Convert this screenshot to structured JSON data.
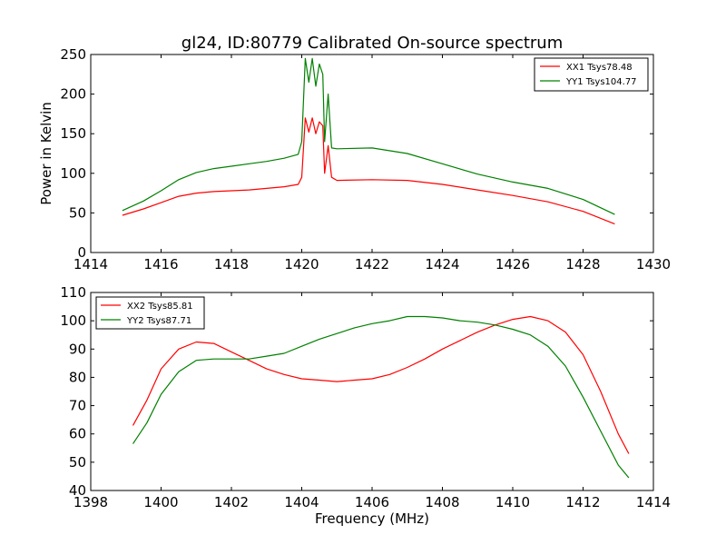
{
  "figure": {
    "title": "gl24, ID:80779 Calibrated On-source spectrum",
    "xlabel": "Frequency (MHz)",
    "ylabel": "Power in Kelvin"
  },
  "chart_data": [
    {
      "type": "line",
      "title": "gl24, ID:80779 Calibrated On-source spectrum",
      "xlabel": "",
      "ylabel": "Power in Kelvin",
      "xlim": [
        1414,
        1430
      ],
      "ylim": [
        0,
        250
      ],
      "xticks": [
        1414,
        1416,
        1418,
        1420,
        1422,
        1424,
        1426,
        1428,
        1430
      ],
      "yticks": [
        0,
        50,
        100,
        150,
        200,
        250
      ],
      "grid": false,
      "legend": "top-right",
      "series": [
        {
          "name": "XX1 Tsys78.48",
          "color": "#ff0000",
          "points": [
            [
              1414.9,
              47
            ],
            [
              1415.5,
              55
            ],
            [
              1416,
              63
            ],
            [
              1416.5,
              71
            ],
            [
              1417,
              75
            ],
            [
              1417.5,
              77
            ],
            [
              1418,
              78
            ],
            [
              1418.5,
              79
            ],
            [
              1419,
              81
            ],
            [
              1419.5,
              83
            ],
            [
              1419.9,
              86
            ],
            [
              1420.0,
              95
            ],
            [
              1420.1,
              170
            ],
            [
              1420.2,
              152
            ],
            [
              1420.3,
              170
            ],
            [
              1420.4,
              150
            ],
            [
              1420.5,
              165
            ],
            [
              1420.6,
              160
            ],
            [
              1420.65,
              100
            ],
            [
              1420.75,
              135
            ],
            [
              1420.85,
              95
            ],
            [
              1421,
              91
            ],
            [
              1422,
              92
            ],
            [
              1423,
              91
            ],
            [
              1424,
              86
            ],
            [
              1425,
              79
            ],
            [
              1426,
              72
            ],
            [
              1427,
              64
            ],
            [
              1428,
              52
            ],
            [
              1428.9,
              36
            ]
          ]
        },
        {
          "name": "YY1 Tsys104.77",
          "color": "#008000",
          "points": [
            [
              1414.9,
              53
            ],
            [
              1415.5,
              65
            ],
            [
              1416,
              78
            ],
            [
              1416.5,
              92
            ],
            [
              1417,
              101
            ],
            [
              1417.5,
              106
            ],
            [
              1418,
              109
            ],
            [
              1418.5,
              112
            ],
            [
              1419,
              115
            ],
            [
              1419.5,
              119
            ],
            [
              1419.9,
              124
            ],
            [
              1420.0,
              140
            ],
            [
              1420.1,
              245
            ],
            [
              1420.2,
              215
            ],
            [
              1420.3,
              245
            ],
            [
              1420.4,
              210
            ],
            [
              1420.5,
              238
            ],
            [
              1420.6,
              225
            ],
            [
              1420.65,
              140
            ],
            [
              1420.75,
              200
            ],
            [
              1420.85,
              132
            ],
            [
              1421,
              131
            ],
            [
              1422,
              132
            ],
            [
              1423,
              125
            ],
            [
              1424,
              112
            ],
            [
              1425,
              99
            ],
            [
              1426,
              89
            ],
            [
              1427,
              81
            ],
            [
              1428,
              67
            ],
            [
              1428.9,
              48
            ]
          ]
        }
      ]
    },
    {
      "type": "line",
      "title": "",
      "xlabel": "Frequency (MHz)",
      "ylabel": "",
      "xlim": [
        1398,
        1414
      ],
      "ylim": [
        40,
        110
      ],
      "xticks": [
        1398,
        1400,
        1402,
        1404,
        1406,
        1408,
        1410,
        1412,
        1414
      ],
      "yticks": [
        40,
        50,
        60,
        70,
        80,
        90,
        100,
        110
      ],
      "grid": false,
      "legend": "top-left",
      "series": [
        {
          "name": "XX2 Tsys85.81",
          "color": "#ff0000",
          "points": [
            [
              1399.2,
              63
            ],
            [
              1399.6,
              72
            ],
            [
              1400,
              83
            ],
            [
              1400.5,
              90
            ],
            [
              1401,
              92.5
            ],
            [
              1401.5,
              92
            ],
            [
              1402,
              89
            ],
            [
              1402.5,
              86
            ],
            [
              1403,
              83
            ],
            [
              1403.5,
              81
            ],
            [
              1404,
              79.5
            ],
            [
              1404.5,
              79
            ],
            [
              1405,
              78.5
            ],
            [
              1405.5,
              79
            ],
            [
              1406,
              79.5
            ],
            [
              1406.5,
              81
            ],
            [
              1407,
              83.5
            ],
            [
              1407.5,
              86.5
            ],
            [
              1408,
              90
            ],
            [
              1408.5,
              93
            ],
            [
              1409,
              96
            ],
            [
              1409.5,
              98.5
            ],
            [
              1410,
              100.5
            ],
            [
              1410.5,
              101.5
            ],
            [
              1411,
              100
            ],
            [
              1411.5,
              96
            ],
            [
              1412,
              88
            ],
            [
              1412.5,
              75
            ],
            [
              1413,
              60
            ],
            [
              1413.3,
              53
            ]
          ]
        },
        {
          "name": "YY2 Tsys87.71",
          "color": "#008000",
          "points": [
            [
              1399.2,
              56.5
            ],
            [
              1399.6,
              64
            ],
            [
              1400,
              74
            ],
            [
              1400.5,
              82
            ],
            [
              1401,
              86
            ],
            [
              1401.5,
              86.5
            ],
            [
              1402,
              86.5
            ],
            [
              1402.5,
              86.5
            ],
            [
              1403,
              87.5
            ],
            [
              1403.5,
              88.5
            ],
            [
              1404,
              91
            ],
            [
              1404.5,
              93.5
            ],
            [
              1405,
              95.5
            ],
            [
              1405.5,
              97.5
            ],
            [
              1406,
              99
            ],
            [
              1406.5,
              100
            ],
            [
              1407,
              101.5
            ],
            [
              1407.5,
              101.5
            ],
            [
              1408,
              101
            ],
            [
              1408.5,
              100
            ],
            [
              1409,
              99.5
            ],
            [
              1409.5,
              98.5
            ],
            [
              1410,
              97
            ],
            [
              1410.5,
              95
            ],
            [
              1411,
              91
            ],
            [
              1411.5,
              84
            ],
            [
              1412,
              73
            ],
            [
              1412.5,
              61
            ],
            [
              1413,
              49
            ],
            [
              1413.3,
              44.5
            ]
          ]
        }
      ]
    }
  ]
}
